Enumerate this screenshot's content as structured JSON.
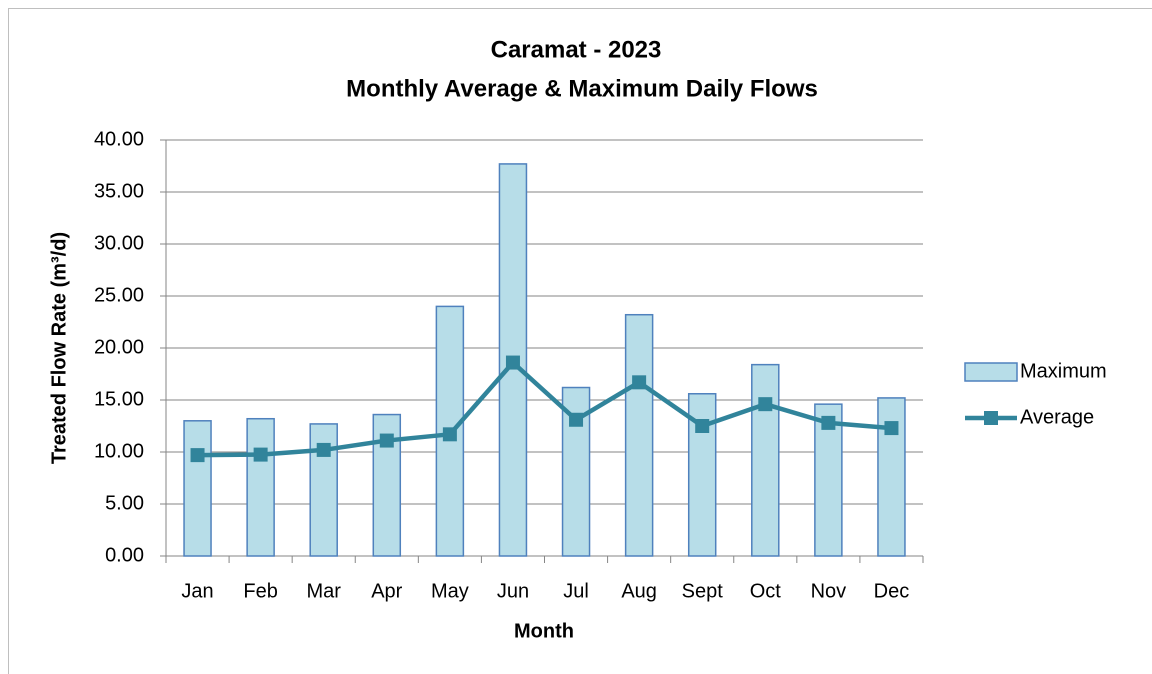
{
  "chart_data": {
    "type": "bar",
    "title": "Caramat - 2023",
    "subtitle": "Monthly Average & Maximum Daily Flows",
    "xlabel": "Month",
    "ylabel": "Treated Flow Rate (m³/d)",
    "categories": [
      "Jan",
      "Feb",
      "Mar",
      "Apr",
      "May",
      "Jun",
      "Jul",
      "Aug",
      "Sept",
      "Oct",
      "Nov",
      "Dec"
    ],
    "series": [
      {
        "name": "Maximum",
        "type": "bar",
        "color": "#b7dde8",
        "edge_color": "#4f81bd",
        "values": [
          13.0,
          13.2,
          12.7,
          13.6,
          24.0,
          37.7,
          16.2,
          23.2,
          15.6,
          18.4,
          14.6,
          15.2
        ]
      },
      {
        "name": "Average",
        "type": "line",
        "color": "#31849b",
        "values": [
          9.7,
          9.75,
          10.2,
          11.1,
          11.7,
          18.6,
          13.1,
          16.7,
          12.5,
          14.6,
          12.8,
          12.3
        ]
      }
    ],
    "ylim": [
      0,
      40
    ],
    "yticks": [
      {
        "value": 0,
        "label": "0.00"
      },
      {
        "value": 5,
        "label": "5.00"
      },
      {
        "value": 10,
        "label": "10.00"
      },
      {
        "value": 15,
        "label": "15.00"
      },
      {
        "value": 20,
        "label": "20.00"
      },
      {
        "value": 25,
        "label": "25.00"
      },
      {
        "value": 30,
        "label": "30.00"
      },
      {
        "value": 35,
        "label": "35.00"
      },
      {
        "value": 40,
        "label": "40.00"
      }
    ],
    "grid": true,
    "legend": "right"
  }
}
